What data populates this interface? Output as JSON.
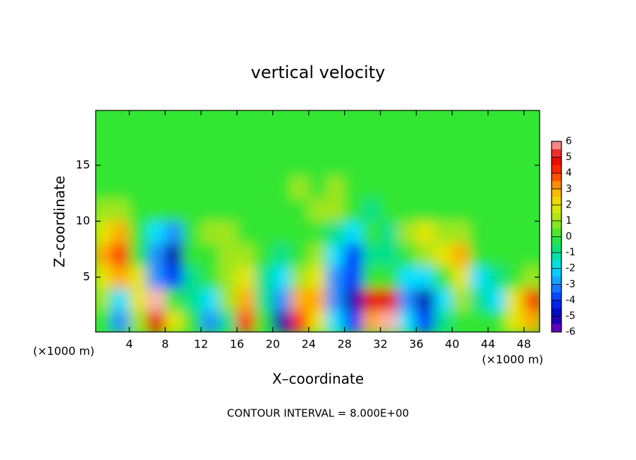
{
  "chart_data": {
    "type": "contour",
    "title": "vertical velocity",
    "x_label": "X–coordinate",
    "y_label": "Z–coordinate",
    "axis_unit": "(×1000 m)",
    "footnote": "CONTOUR INTERVAL = 8.000E+00",
    "xlim": [
      0.25,
      49.75
    ],
    "ylim": [
      0.1,
      19.9
    ],
    "xticks": [
      4,
      8,
      12,
      16,
      20,
      24,
      28,
      32,
      36,
      40,
      44,
      48
    ],
    "yticks": [
      5,
      10,
      15
    ],
    "x": [
      1,
      3,
      5,
      7,
      9,
      11,
      13,
      15,
      17,
      19,
      21,
      23,
      25,
      27,
      29,
      31,
      33,
      35,
      37,
      39,
      41,
      43,
      45,
      47,
      49
    ],
    "y": [
      1,
      3,
      5,
      7,
      9,
      11,
      13,
      15,
      17,
      19
    ],
    "values": [
      [
        0,
        -3,
        1,
        5,
        2,
        0,
        -3,
        -1,
        4,
        0,
        -5,
        4,
        2,
        -2,
        -4,
        3,
        6,
        -2,
        -4,
        -1,
        0,
        0,
        0,
        2,
        3
      ],
      [
        1,
        -2,
        2,
        6,
        0,
        -1,
        -2,
        1,
        3,
        -1,
        -3,
        3,
        3,
        -3,
        -5,
        5,
        5,
        -3,
        -5,
        -2,
        1,
        -1,
        -2,
        2,
        4
      ],
      [
        2,
        3,
        2,
        -3,
        -4,
        -1,
        0,
        1,
        2,
        -1,
        -2,
        1,
        2,
        -3,
        -4,
        0,
        0,
        -2,
        -2,
        0,
        2,
        -2,
        -1,
        0,
        1
      ],
      [
        3,
        4,
        0,
        -3,
        -5,
        0,
        0,
        1,
        1,
        0,
        -1,
        0,
        1,
        -2,
        -4,
        -1,
        -1,
        0,
        1,
        2,
        3,
        0,
        0,
        0,
        0
      ],
      [
        2,
        3,
        0,
        -2,
        -3,
        0,
        1,
        1,
        0,
        0,
        0,
        0,
        0,
        -1,
        -2,
        0,
        -1,
        1,
        2,
        1,
        1,
        0,
        0,
        0,
        0
      ],
      [
        1,
        1,
        0,
        0,
        0,
        0,
        0,
        0,
        0,
        0,
        0,
        0,
        1,
        1,
        0,
        -1,
        0,
        0,
        0,
        0,
        0,
        0,
        0,
        0,
        0
      ],
      [
        0,
        0,
        0,
        0,
        0,
        0,
        0,
        0,
        0,
        0,
        0,
        1,
        0,
        1,
        0,
        0,
        0,
        0,
        0,
        0,
        0,
        0,
        0,
        0,
        0
      ],
      [
        0,
        0,
        0,
        0,
        0,
        0,
        0,
        0,
        0,
        0,
        0,
        0,
        0,
        0,
        0,
        0,
        0,
        0,
        0,
        0,
        0,
        0,
        0,
        0,
        0
      ],
      [
        0,
        0,
        0,
        0,
        0,
        0,
        0,
        0,
        0,
        0,
        0,
        0,
        0,
        0,
        0,
        0,
        0,
        0,
        0,
        0,
        0,
        0,
        0,
        0,
        0
      ],
      [
        0,
        0,
        0,
        0,
        0,
        0,
        0,
        0,
        0,
        0,
        0,
        0,
        0,
        0,
        0,
        0,
        0,
        0,
        0,
        0,
        0,
        0,
        0,
        0,
        0
      ]
    ],
    "colorbar": {
      "ticks": [
        6,
        5,
        4,
        3,
        2,
        1,
        0,
        -1,
        -2,
        -3,
        -4,
        -5,
        -6
      ],
      "colors": [
        "#ffb4b4",
        "#e60000",
        "#ff3300",
        "#ffaa00",
        "#e6e600",
        "#a0e61a",
        "#33e633",
        "#00e08c",
        "#00e0ff",
        "#1e90ff",
        "#0030ff",
        "#0000b0",
        "#7f00bf"
      ]
    }
  }
}
